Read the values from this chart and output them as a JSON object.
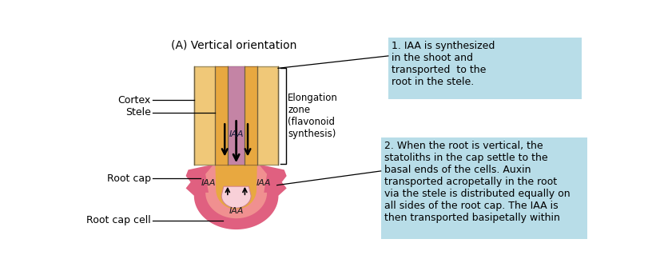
{
  "title": "(A) Vertical orientation",
  "bg_color": "#ffffff",
  "box1_color": "#b8dde8",
  "box2_color": "#b8dde8",
  "box1_text": "1. IAA is synthesized\nin the shoot and\ntransported  to the\nroot in the stele.",
  "box2_text": "2. When the root is vertical, the\nstatoliths in the cap settle to the\nbasal ends of the cells. Auxin\ntransported acropetally in the root\nvia the stele is distributed equally on\nall sides of the root cap. The IAA is\nthen transported basipetally within",
  "cortex_label": "Cortex",
  "stele_label": "Stele",
  "root_cap_label": "Root cap",
  "root_cap_cell_label": "Root cap cell",
  "elongation_label": "Elongation\nzone\n(flavonoid\nsynthesis)",
  "iaa_label": "IAA",
  "cortex_color": "#f0c878",
  "stele_color": "#e8a840",
  "purple_color": "#b878c8",
  "root_cap_outer_color": "#e06080",
  "root_cap_mid_color": "#f09090",
  "root_cap_inner_color": "#f8d0d8",
  "root_cell_color": "#fce8ec"
}
